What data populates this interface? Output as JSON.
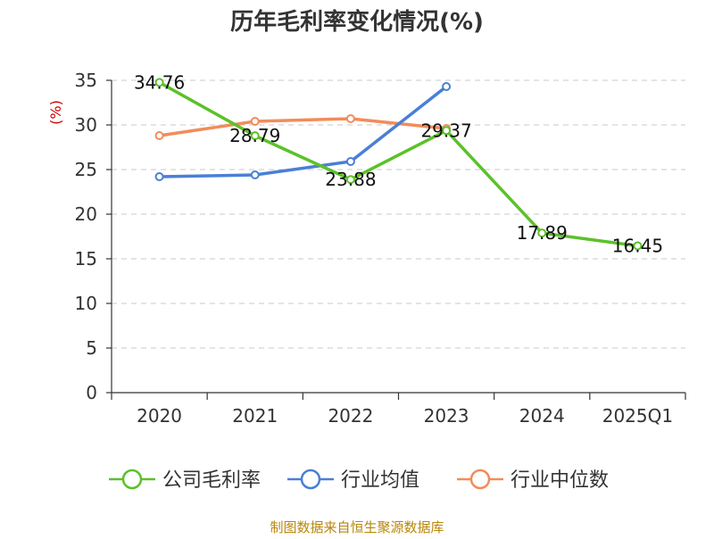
{
  "chart_data": {
    "type": "line",
    "title": "历年毛利率变化情况(%)",
    "ylabel": "(%)",
    "categories": [
      "2020",
      "2021",
      "2022",
      "2023",
      "2024",
      "2025Q1"
    ],
    "y_ticks": [
      0,
      5,
      10,
      15,
      20,
      25,
      30,
      35
    ],
    "ylim": [
      0,
      35
    ],
    "grid": "horizontal dashed",
    "legend_position": "bottom",
    "series": [
      {
        "name": "公司毛利率",
        "color": "#5cc12a",
        "values": [
          34.76,
          28.79,
          23.88,
          29.37,
          17.89,
          16.45
        ],
        "labels": [
          "34.76",
          "28.79",
          "23.88",
          "29.37",
          "17.89",
          "16.45"
        ]
      },
      {
        "name": "行业均值",
        "color": "#4a7fd6",
        "values": [
          24.2,
          24.4,
          25.9,
          34.3,
          null,
          null
        ]
      },
      {
        "name": "行业中位数",
        "color": "#f28c5a",
        "values": [
          28.8,
          30.4,
          30.7,
          29.6,
          null,
          null
        ]
      }
    ]
  },
  "source": "制图数据来自恒生聚源数据库"
}
